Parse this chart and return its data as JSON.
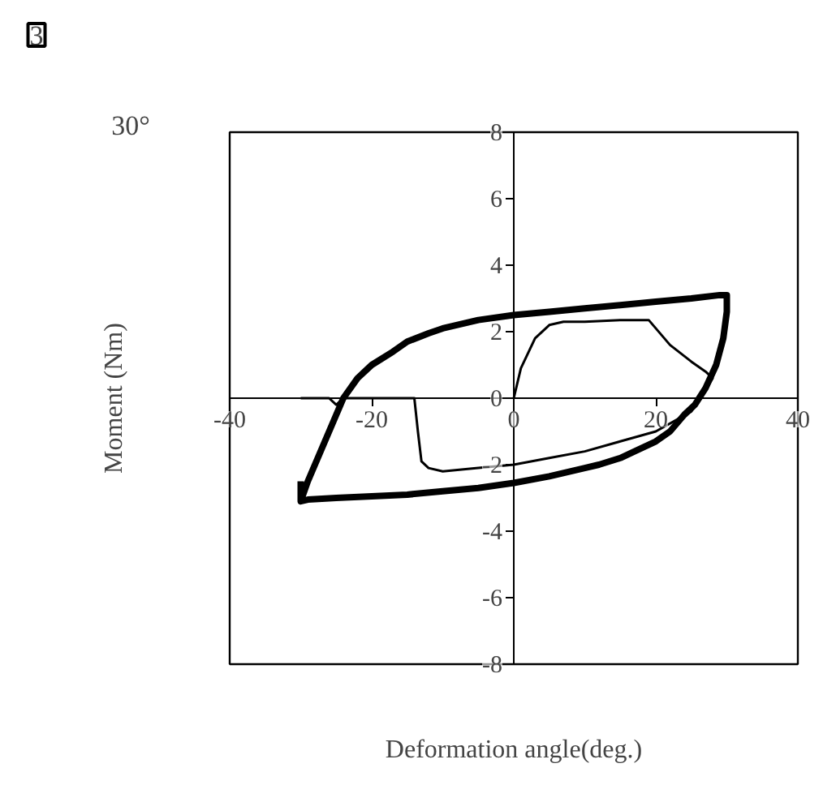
{
  "chart_data": {
    "type": "line",
    "xlabel": "Deformation angle(deg.)",
    "ylabel": "Moment (Nm)",
    "annotations": [
      "3",
      "30°"
    ],
    "xlim": [
      -40,
      40
    ],
    "ylim": [
      -8,
      8
    ],
    "xticks": [
      -40,
      -20,
      0,
      20,
      40
    ],
    "yticks": [
      -8,
      -6,
      -4,
      -2,
      0,
      2,
      4,
      6,
      8
    ],
    "grid": false,
    "marker": "none",
    "line_style": "solid",
    "series": [
      {
        "color": "#000000",
        "x": [
          -30,
          -29,
          -27,
          -25,
          -24,
          -22,
          -20,
          -17,
          -15,
          -12,
          -10,
          -5,
          0,
          5,
          10,
          15,
          20,
          25,
          29,
          30,
          30,
          29.5,
          28.5,
          27,
          25.5,
          24,
          22,
          20,
          17,
          15,
          12,
          10,
          5,
          0,
          -5,
          -10,
          -15,
          -20,
          -25,
          -29,
          -30,
          -30
        ],
        "values": [
          -3.1,
          -2.5,
          -1.5,
          -0.5,
          0,
          0.6,
          1.0,
          1.4,
          1.7,
          1.95,
          2.1,
          2.35,
          2.5,
          2.6,
          2.7,
          2.8,
          2.9,
          3.0,
          3.1,
          3.1,
          2.6,
          1.8,
          1.0,
          0.3,
          -0.2,
          -0.5,
          -1.0,
          -1.3,
          -1.6,
          -1.8,
          -2.0,
          -2.1,
          -2.35,
          -2.55,
          -2.7,
          -2.8,
          -2.9,
          -2.95,
          -3.0,
          -3.05,
          -3.1,
          -2.5
        ]
      },
      {
        "color": "#000000",
        "x": [
          -30,
          -26,
          -25,
          -24,
          -20,
          -14,
          -13.5,
          -13,
          -12,
          -10,
          -5,
          0,
          5,
          10,
          15,
          20,
          25,
          28,
          27,
          25,
          22,
          20,
          19,
          15,
          10,
          7,
          5,
          3,
          1,
          0
        ],
        "values": [
          0,
          0,
          -0.2,
          0,
          0,
          0,
          -1.0,
          -1.9,
          -2.1,
          -2.2,
          -2.1,
          -2.0,
          -1.8,
          -1.6,
          -1.3,
          -1.0,
          -0.4,
          0.6,
          0.8,
          1.1,
          1.6,
          2.1,
          2.35,
          2.35,
          2.3,
          2.3,
          2.2,
          1.8,
          0.9,
          0
        ]
      }
    ]
  }
}
